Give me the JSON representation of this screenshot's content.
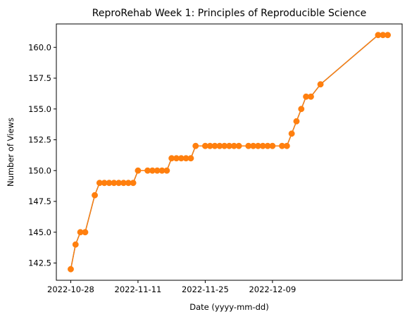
{
  "chart_data": {
    "type": "line",
    "title": "ReproRehab Week 1: Principles of Reproducible Science",
    "xlabel": "Date (yyyy-mm-dd)",
    "ylabel": "Number of Views",
    "x_ticks": [
      "2022-10-28",
      "2022-11-11",
      "2022-11-25",
      "2022-12-09"
    ],
    "y_ticks": [
      "142.5",
      "145.0",
      "147.5",
      "150.0",
      "152.5",
      "155.0",
      "157.5",
      "160.0"
    ],
    "xlim": [
      "2022-10-25",
      "2023-01-05"
    ],
    "ylim": [
      141.1,
      161.9
    ],
    "grid": false,
    "legend": "none",
    "colors": {
      "line": "#1f77b4",
      "marker": "#ff7f0e"
    },
    "series": [
      {
        "dates": [
          "2022-10-28",
          "2022-10-29",
          "2022-10-30",
          "2022-10-31",
          "2022-11-02",
          "2022-11-03",
          "2022-11-04",
          "2022-11-05",
          "2022-11-06",
          "2022-11-07",
          "2022-11-08",
          "2022-11-09",
          "2022-11-10",
          "2022-11-11",
          "2022-11-13",
          "2022-11-14",
          "2022-11-15",
          "2022-11-16",
          "2022-11-17",
          "2022-11-18",
          "2022-11-19",
          "2022-11-20",
          "2022-11-21",
          "2022-11-22",
          "2022-11-23",
          "2022-11-25",
          "2022-11-26",
          "2022-11-27",
          "2022-11-28",
          "2022-11-29",
          "2022-11-30",
          "2022-12-01",
          "2022-12-02",
          "2022-12-04",
          "2022-12-05",
          "2022-12-06",
          "2022-12-07",
          "2022-12-08",
          "2022-12-09",
          "2022-12-11",
          "2022-12-12",
          "2022-12-13",
          "2022-12-14",
          "2022-12-15",
          "2022-12-16",
          "2022-12-17",
          "2022-12-19",
          "2022-12-31",
          "2023-01-01",
          "2023-01-02"
        ],
        "values": [
          142,
          144,
          145,
          145,
          148,
          149,
          149,
          149,
          149,
          149,
          149,
          149,
          149,
          150,
          150,
          150,
          150,
          150,
          150,
          151,
          151,
          151,
          151,
          151,
          152,
          152,
          152,
          152,
          152,
          152,
          152,
          152,
          152,
          152,
          152,
          152,
          152,
          152,
          152,
          152,
          152,
          153,
          154,
          155,
          156,
          156,
          157,
          161,
          161,
          161
        ]
      }
    ]
  }
}
